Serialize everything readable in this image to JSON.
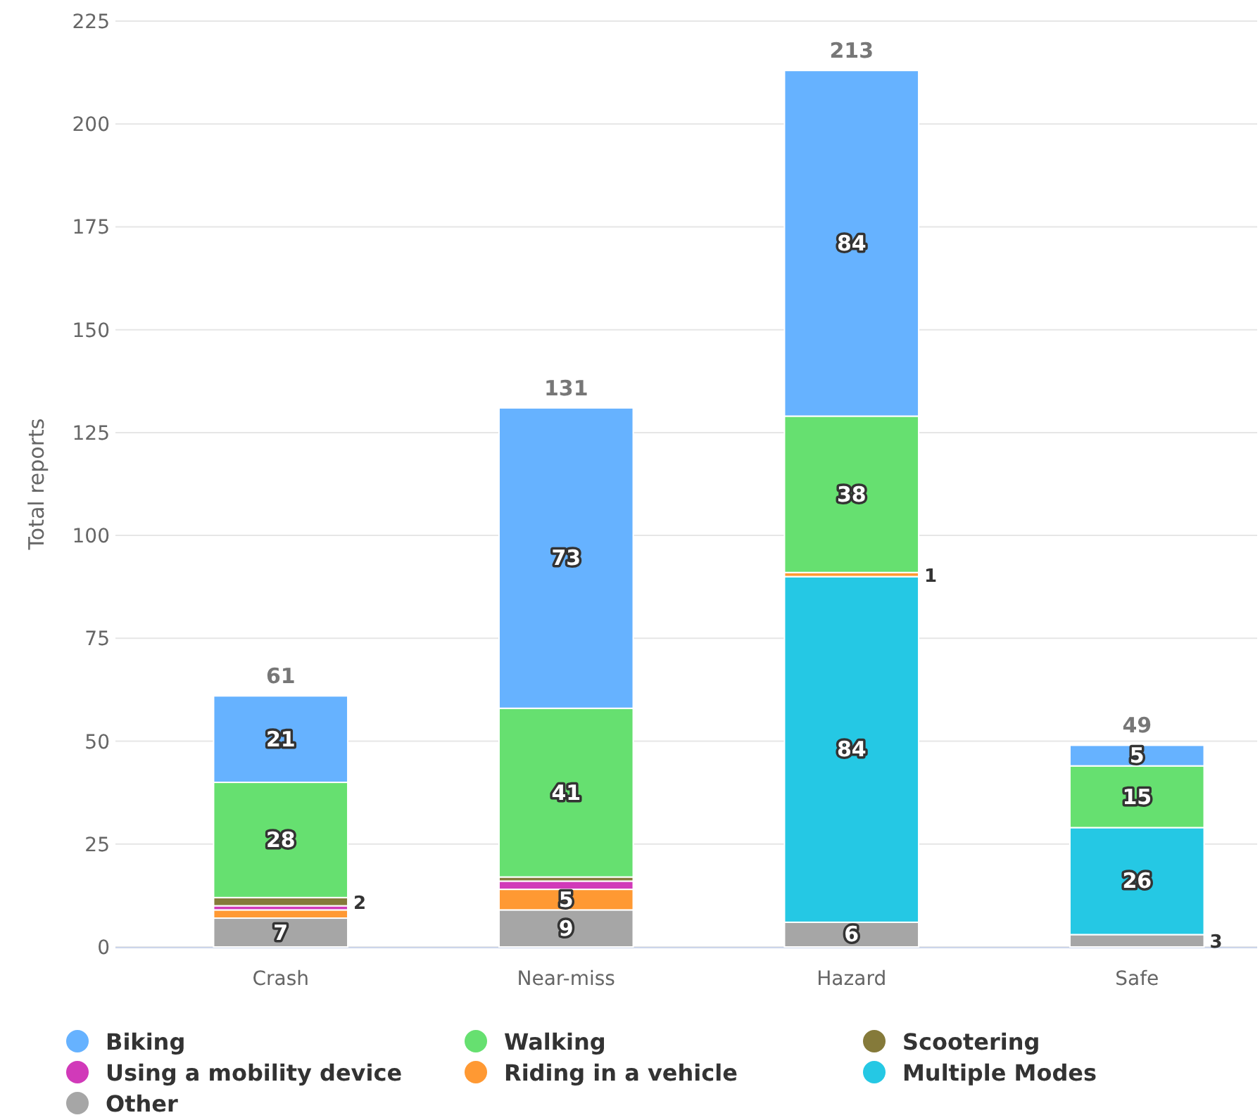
{
  "chart_data": {
    "type": "bar",
    "stacked": true,
    "ylabel": "Total reports",
    "categories": [
      "Crash",
      "Near-miss",
      "Hazard",
      "Safe"
    ],
    "ylim": [
      0,
      225
    ],
    "yticks": [
      0,
      25,
      50,
      75,
      100,
      125,
      150,
      175,
      200,
      225
    ],
    "grid": "y",
    "legend": "bottom",
    "totals": [
      "61",
      "131",
      "213",
      "49"
    ],
    "series": [
      {
        "name": "Other",
        "color": "#a6a6a6",
        "values": [
          7,
          9,
          6,
          3
        ],
        "value_labels": [
          "7",
          "9",
          "6",
          "3"
        ]
      },
      {
        "name": "Multiple Modes",
        "color": "#25c8e4",
        "values": [
          0,
          0,
          84,
          26
        ],
        "value_labels": [
          null,
          null,
          "84",
          "26"
        ]
      },
      {
        "name": "Riding in a vehicle",
        "color": "#ff9933",
        "values": [
          2,
          5,
          1,
          0
        ],
        "value_labels": [
          null,
          "5",
          "1",
          null
        ]
      },
      {
        "name": "Using a mobility device",
        "color": "#d13ab9",
        "values": [
          1,
          2,
          0,
          0
        ],
        "value_labels": [
          null,
          null,
          null,
          null
        ]
      },
      {
        "name": "Scootering",
        "color": "#857a3a",
        "values": [
          2,
          1,
          0,
          0
        ],
        "value_labels": [
          "2",
          null,
          null,
          null
        ]
      },
      {
        "name": "Walking",
        "color": "#66e070",
        "values": [
          28,
          41,
          38,
          15
        ],
        "value_labels": [
          "28",
          "41",
          "38",
          "15"
        ]
      },
      {
        "name": "Biking",
        "color": "#66b2ff",
        "values": [
          21,
          73,
          84,
          5
        ],
        "value_labels": [
          "21",
          "73",
          "84",
          "5"
        ]
      }
    ]
  }
}
